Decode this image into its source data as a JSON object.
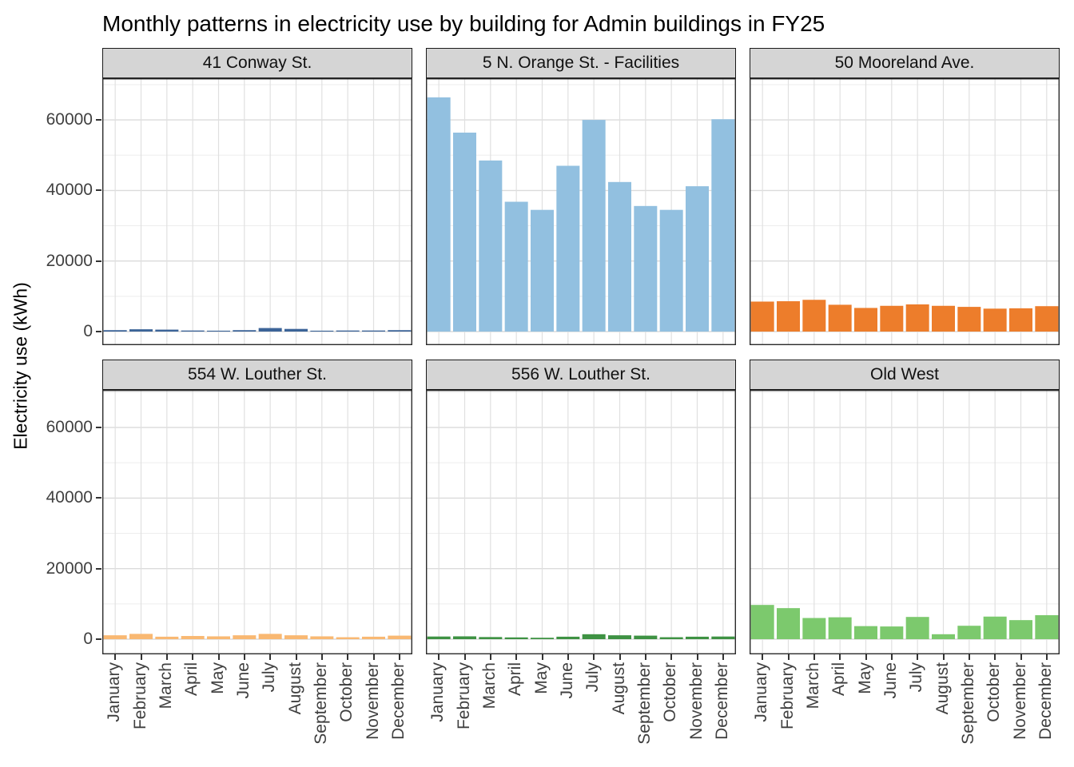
{
  "title": "Monthly patterns in electricity use by building for Admin buildings in FY25",
  "chart_data": {
    "type": "bar",
    "faceted": true,
    "title": "Monthly patterns in electricity use by building for Admin buildings in FY25",
    "xlabel": "",
    "ylabel": "Electricity use (kWh)",
    "categories": [
      "January",
      "February",
      "March",
      "April",
      "May",
      "June",
      "July",
      "August",
      "September",
      "October",
      "November",
      "December"
    ],
    "y_ticks": [
      0,
      20000,
      40000,
      60000
    ],
    "ylim": [
      0,
      72000
    ],
    "grid": "horizontal major every 20000, minor every 10000, vertical major at each month",
    "legend": "none",
    "panel_layout": {
      "rows": 2,
      "cols": 3
    },
    "panels": [
      {
        "title": "41 Conway St.",
        "color": "#3C6498",
        "values": [
          400,
          650,
          550,
          300,
          250,
          400,
          1000,
          750,
          250,
          300,
          300,
          400
        ]
      },
      {
        "title": "5 N. Orange St. - Facilities",
        "color": "#92C0E0",
        "values": [
          66400,
          56400,
          48500,
          36800,
          34500,
          47000,
          60000,
          42400,
          35600,
          34500,
          41200,
          60200
        ]
      },
      {
        "title": "50 Mooreland Ave.",
        "color": "#ED7D2B",
        "values": [
          8500,
          8600,
          9000,
          7600,
          6700,
          7300,
          7700,
          7300,
          7000,
          6500,
          6600,
          7200
        ]
      },
      {
        "title": "554 W. Louther St.",
        "color": "#F9B872",
        "values": [
          1100,
          1500,
          700,
          900,
          800,
          1100,
          1500,
          1100,
          800,
          550,
          700,
          1000
        ]
      },
      {
        "title": "556 W. Louther St.",
        "color": "#3E9243",
        "values": [
          750,
          800,
          600,
          500,
          400,
          700,
          1400,
          1100,
          1000,
          550,
          700,
          750
        ]
      },
      {
        "title": "Old West",
        "color": "#7CC96D",
        "values": [
          9700,
          8800,
          6000,
          6200,
          3700,
          3600,
          6300,
          1400,
          3800,
          6400,
          5400,
          6800
        ]
      }
    ]
  },
  "colors": {
    "strip_background": "#d5d5d5",
    "panel_border": "#2b2b2b",
    "grid_major": "#dbdbdb",
    "grid_minor": "#ededed",
    "tick_mark": "#333333",
    "axis_text": "#404040"
  }
}
